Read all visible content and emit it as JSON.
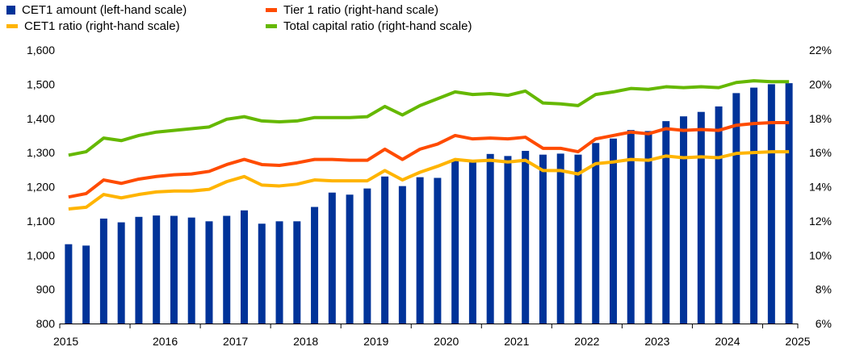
{
  "chart_data": {
    "type": "bar",
    "legend_placement": "top",
    "grid": false,
    "x_tick_labels": [
      "2015",
      "2016",
      "2017",
      "2018",
      "2019",
      "2020",
      "2021",
      "2022",
      "2023",
      "2024",
      "2025"
    ],
    "y_left": {
      "ylim": [
        800,
        1600
      ],
      "ticks": [
        "800",
        "900",
        "1,000",
        "1,100",
        "1,200",
        "1,300",
        "1,400",
        "1,500",
        "1,600"
      ]
    },
    "y_right": {
      "ylim": [
        6,
        22
      ],
      "unit": "%",
      "ticks": [
        "6%",
        "8%",
        "10%",
        "12%",
        "14%",
        "16%",
        "18%",
        "20%",
        "22%"
      ]
    },
    "periods": [
      "2015Q1",
      "2015Q2",
      "2015Q3",
      "2015Q4",
      "2016Q1",
      "2016Q2",
      "2016Q3",
      "2016Q4",
      "2017Q1",
      "2017Q2",
      "2017Q3",
      "2017Q4",
      "2018Q1",
      "2018Q2",
      "2018Q3",
      "2018Q4",
      "2019Q1",
      "2019Q2",
      "2019Q3",
      "2019Q4",
      "2020Q1",
      "2020Q2",
      "2020Q3",
      "2020Q4",
      "2021Q1",
      "2021Q2",
      "2021Q3",
      "2021Q4",
      "2022Q1",
      "2022Q2",
      "2022Q3",
      "2022Q4",
      "2023Q1",
      "2023Q2",
      "2023Q3",
      "2023Q4",
      "2024Q1",
      "2024Q2",
      "2024Q3",
      "2024Q4",
      "2025Q1",
      "2025Q2"
    ],
    "series": [
      {
        "name": "CET1 amount (left-hand scale)",
        "kind": "bar",
        "axis": "left",
        "color": "#003399",
        "values": [
          1032,
          1028,
          1107,
          1096,
          1112,
          1116,
          1115,
          1110,
          1099,
          1115,
          1131,
          1092,
          1099,
          1099,
          1141,
          1183,
          1177,
          1195,
          1230,
          1202,
          1228,
          1226,
          1279,
          1278,
          1296,
          1290,
          1305,
          1294,
          1297,
          1294,
          1328,
          1341,
          1366,
          1363,
          1392,
          1406,
          1419,
          1435,
          1474,
          1490,
          1500,
          1503
        ]
      },
      {
        "name": "Tier 1 ratio (right-hand scale)",
        "kind": "line",
        "axis": "right",
        "color": "#ff4b00",
        "values": [
          13.4,
          13.6,
          14.4,
          14.2,
          14.45,
          14.6,
          14.7,
          14.75,
          14.9,
          15.3,
          15.6,
          15.3,
          15.25,
          15.4,
          15.6,
          15.6,
          15.55,
          15.55,
          16.2,
          15.6,
          16.2,
          16.5,
          17.0,
          16.8,
          16.85,
          16.8,
          16.9,
          16.25,
          16.25,
          16.05,
          16.8,
          17.0,
          17.2,
          17.1,
          17.4,
          17.3,
          17.35,
          17.3,
          17.6,
          17.7,
          17.75,
          17.75
        ]
      },
      {
        "name": "CET1 ratio (right-hand scale)",
        "kind": "line",
        "axis": "right",
        "color": "#ffb400",
        "values": [
          12.7,
          12.8,
          13.55,
          13.35,
          13.55,
          13.7,
          13.75,
          13.75,
          13.85,
          14.3,
          14.6,
          14.1,
          14.05,
          14.15,
          14.4,
          14.35,
          14.35,
          14.35,
          14.95,
          14.4,
          14.85,
          15.2,
          15.6,
          15.5,
          15.55,
          15.45,
          15.55,
          14.95,
          14.95,
          14.75,
          15.35,
          15.45,
          15.6,
          15.55,
          15.8,
          15.7,
          15.75,
          15.7,
          15.95,
          16.0,
          16.05,
          16.05
        ]
      },
      {
        "name": "Total capital ratio (right-hand scale)",
        "kind": "line",
        "axis": "right",
        "color": "#65b800",
        "values": [
          15.85,
          16.05,
          16.85,
          16.7,
          17.0,
          17.2,
          17.3,
          17.4,
          17.5,
          17.95,
          18.1,
          17.85,
          17.8,
          17.85,
          18.05,
          18.05,
          18.05,
          18.1,
          18.7,
          18.2,
          18.75,
          19.15,
          19.55,
          19.4,
          19.45,
          19.35,
          19.6,
          18.9,
          18.85,
          18.75,
          19.4,
          19.55,
          19.75,
          19.7,
          19.85,
          19.8,
          19.85,
          19.8,
          20.1,
          20.2,
          20.15,
          20.15
        ]
      }
    ],
    "legend": [
      {
        "label": "CET1 amount (left-hand scale)",
        "kind": "bar",
        "color": "#003399"
      },
      {
        "label": "Tier 1 ratio (right-hand scale)",
        "kind": "line",
        "color": "#ff4b00"
      },
      {
        "label": "CET1 ratio (right-hand scale)",
        "kind": "line",
        "color": "#ffb400"
      },
      {
        "label": "Total capital ratio (right-hand scale)",
        "kind": "line",
        "color": "#65b800"
      }
    ]
  }
}
